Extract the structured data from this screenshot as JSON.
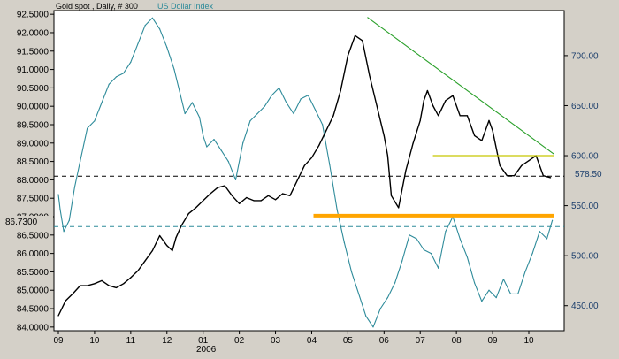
{
  "header": {
    "title": "Gold spot , Daily, # 300",
    "overlay_label": "US Dollar Index",
    "title_color": "#000000",
    "overlay_color": "#2e8b9a"
  },
  "chart_data": {
    "type": "line",
    "left_axis": {
      "ticks": [
        "92.5000",
        "92.0000",
        "91.5000",
        "91.0000",
        "90.5000",
        "90.0000",
        "89.5000",
        "89.0000",
        "88.5000",
        "88.0000",
        "87.5000",
        "87.0000",
        "86.5000",
        "86.0000",
        "85.5000",
        "85.0000",
        "84.5000",
        "84.0000"
      ],
      "ylim": [
        83.9,
        92.6
      ]
    },
    "right_axis": {
      "ticks": [
        "700.00",
        "650.00",
        "600.00",
        "550.00",
        "500.00",
        "450.00"
      ],
      "ylim": [
        425,
        745
      ]
    },
    "x_axis": {
      "ticks": [
        "09",
        "10",
        "11",
        "12",
        "01",
        "02",
        "03",
        "04",
        "05",
        "06",
        "07",
        "08",
        "09",
        "10"
      ],
      "year_label": "2006"
    },
    "reference_lines": {
      "left_value_label": "86.7300",
      "right_value_label": "578.50",
      "resistance_level": 540,
      "upper_support": 600
    },
    "series": [
      {
        "name": "US Dollar Index",
        "axis": "left",
        "color": "#2e8b9a",
        "x": [
          0.0,
          0.05,
          0.15,
          0.3,
          0.45,
          0.6,
          0.8,
          1.0,
          1.2,
          1.4,
          1.6,
          1.8,
          2.0,
          2.2,
          2.4,
          2.6,
          2.8,
          3.0,
          3.2,
          3.35,
          3.5,
          3.7,
          3.9,
          4.0,
          4.1,
          4.3,
          4.5,
          4.7,
          4.9,
          5.1,
          5.3,
          5.5,
          5.7,
          5.9,
          6.1,
          6.3,
          6.5,
          6.7,
          6.9,
          7.1,
          7.3,
          7.5,
          7.7,
          7.9,
          8.1,
          8.3,
          8.5,
          8.7,
          8.9,
          9.1,
          9.3,
          9.5,
          9.7,
          9.9,
          10.1,
          10.3,
          10.5,
          10.7,
          10.9,
          11.1,
          11.3,
          11.5,
          11.7,
          11.9,
          12.1,
          12.3,
          12.5,
          12.7,
          12.9,
          13.1,
          13.3,
          13.5,
          13.65
        ],
        "values": [
          87.6,
          87.2,
          86.6,
          86.9,
          87.8,
          88.5,
          89.4,
          89.6,
          90.1,
          90.6,
          90.8,
          90.9,
          91.2,
          91.7,
          92.2,
          92.4,
          92.1,
          91.6,
          91.0,
          90.4,
          89.8,
          90.1,
          89.7,
          89.2,
          88.9,
          89.1,
          88.8,
          88.5,
          88.0,
          89.0,
          89.6,
          89.8,
          90.0,
          90.3,
          90.5,
          90.1,
          89.8,
          90.2,
          90.3,
          89.9,
          89.5,
          88.4,
          87.2,
          86.3,
          85.5,
          84.9,
          84.3,
          84.0,
          84.5,
          84.8,
          85.2,
          85.8,
          86.5,
          86.4,
          86.1,
          86.0,
          85.6,
          86.6,
          87.0,
          86.4,
          85.9,
          85.2,
          84.7,
          85.0,
          84.8,
          85.3,
          84.9,
          84.9,
          85.5,
          86.0,
          86.6,
          86.4,
          86.9
        ]
      },
      {
        "name": "Gold spot",
        "axis": "right",
        "color": "#000000",
        "x": [
          0.0,
          0.2,
          0.4,
          0.6,
          0.8,
          1.0,
          1.2,
          1.4,
          1.6,
          1.8,
          2.0,
          2.2,
          2.4,
          2.6,
          2.8,
          3.0,
          3.15,
          3.25,
          3.4,
          3.6,
          3.8,
          4.0,
          4.2,
          4.4,
          4.6,
          4.8,
          5.0,
          5.2,
          5.4,
          5.6,
          5.8,
          6.0,
          6.2,
          6.4,
          6.6,
          6.8,
          7.0,
          7.2,
          7.4,
          7.6,
          7.8,
          8.0,
          8.2,
          8.4,
          8.6,
          8.8,
          9.0,
          9.1,
          9.2,
          9.4,
          9.6,
          9.8,
          10.0,
          10.1,
          10.2,
          10.35,
          10.5,
          10.7,
          10.9,
          11.1,
          11.3,
          11.5,
          11.7,
          11.9,
          12.0,
          12.2,
          12.4,
          12.6,
          12.8,
          13.0,
          13.2,
          13.4,
          13.6
        ],
        "values": [
          440,
          455,
          462,
          470,
          470,
          472,
          475,
          470,
          468,
          472,
          478,
          485,
          495,
          505,
          520,
          510,
          505,
          518,
          530,
          542,
          548,
          555,
          562,
          568,
          570,
          560,
          552,
          558,
          555,
          555,
          560,
          556,
          562,
          560,
          575,
          590,
          598,
          610,
          625,
          640,
          665,
          700,
          720,
          715,
          680,
          650,
          620,
          600,
          560,
          548,
          585,
          612,
          635,
          655,
          665,
          650,
          640,
          655,
          660,
          640,
          640,
          620,
          615,
          635,
          625,
          590,
          580,
          580,
          590,
          595,
          600,
          580,
          578
        ]
      },
      {
        "name": "Trend line",
        "axis": "right",
        "color": "#2aa02a",
        "x": [
          8.55,
          13.68
        ],
        "values": [
          738,
          602
        ]
      }
    ],
    "horizontal_lines": [
      {
        "name": "gold-resistance-line",
        "axis": "right",
        "color": "#ffa500",
        "value": 540,
        "x_from": 7.05,
        "x_to": 13.7
      },
      {
        "name": "gold-upper-support-line",
        "axis": "right",
        "color": "#c8c800",
        "value": 600,
        "x_from": 10.35,
        "x_to": 13.7
      },
      {
        "name": "gold-dashed-line",
        "axis": "left",
        "color": "#000000",
        "value": 88.1
      },
      {
        "name": "dollar-dashed-line",
        "axis": "left",
        "color": "#2e8b9a",
        "value": 86.73
      }
    ],
    "grid": false,
    "legend": "top-left"
  }
}
